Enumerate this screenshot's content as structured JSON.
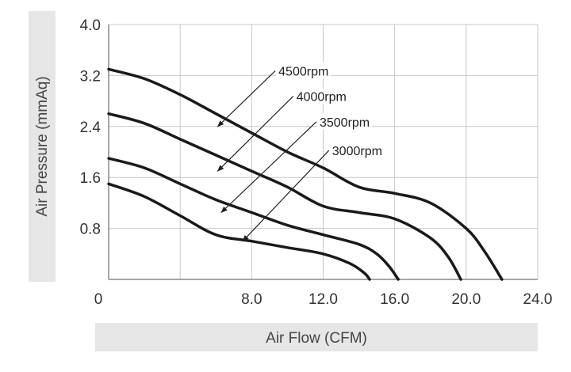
{
  "chart_data": {
    "type": "line",
    "xlabel": "Air Flow (CFM)",
    "ylabel": "Air Pressure (mmAq)",
    "xlim": [
      0,
      24
    ],
    "ylim": [
      0,
      4
    ],
    "x_ticks": [
      {
        "value": 0,
        "label": "0"
      },
      {
        "value": 8,
        "label": "8.0"
      },
      {
        "value": 12,
        "label": "12.0"
      },
      {
        "value": 16,
        "label": "16.0"
      },
      {
        "value": 20,
        "label": "20.0"
      },
      {
        "value": 24,
        "label": "24.0"
      }
    ],
    "y_ticks": [
      {
        "value": 0.8,
        "label": "0.8"
      },
      {
        "value": 1.6,
        "label": "1.6"
      },
      {
        "value": 2.4,
        "label": "2.4"
      },
      {
        "value": 3.2,
        "label": "3.2"
      },
      {
        "value": 4.0,
        "label": "4.0"
      }
    ],
    "x_grid": [
      0,
      4,
      8,
      12,
      16,
      20,
      24
    ],
    "y_grid": [
      0,
      0.8,
      1.6,
      2.4,
      3.2,
      4.0
    ],
    "grid": true,
    "series": [
      {
        "name": "4500rpm",
        "points": [
          [
            0,
            3.3
          ],
          [
            2,
            3.15
          ],
          [
            4,
            2.9
          ],
          [
            6,
            2.6
          ],
          [
            8,
            2.3
          ],
          [
            10,
            2.0
          ],
          [
            12,
            1.75
          ],
          [
            14,
            1.45
          ],
          [
            16,
            1.35
          ],
          [
            18,
            1.2
          ],
          [
            20,
            0.8
          ],
          [
            21,
            0.45
          ],
          [
            22,
            0.0
          ]
        ]
      },
      {
        "name": "4000rpm",
        "points": [
          [
            0,
            2.6
          ],
          [
            2,
            2.45
          ],
          [
            4,
            2.2
          ],
          [
            6,
            1.95
          ],
          [
            8,
            1.7
          ],
          [
            10,
            1.45
          ],
          [
            12,
            1.15
          ],
          [
            14,
            1.05
          ],
          [
            16,
            0.95
          ],
          [
            18,
            0.65
          ],
          [
            19,
            0.35
          ],
          [
            19.7,
            0.0
          ]
        ]
      },
      {
        "name": "3500rpm",
        "points": [
          [
            0,
            1.9
          ],
          [
            2,
            1.75
          ],
          [
            4,
            1.5
          ],
          [
            6,
            1.25
          ],
          [
            8,
            1.05
          ],
          [
            10,
            0.85
          ],
          [
            12,
            0.7
          ],
          [
            14,
            0.55
          ],
          [
            15,
            0.4
          ],
          [
            15.7,
            0.2
          ],
          [
            16.2,
            0.0
          ]
        ]
      },
      {
        "name": "3000rpm",
        "points": [
          [
            0,
            1.5
          ],
          [
            2,
            1.3
          ],
          [
            4,
            1.0
          ],
          [
            6,
            0.7
          ],
          [
            8,
            0.6
          ],
          [
            10,
            0.5
          ],
          [
            12,
            0.4
          ],
          [
            13.5,
            0.25
          ],
          [
            14.3,
            0.1
          ],
          [
            14.6,
            0.0
          ]
        ]
      }
    ],
    "annotations": [
      {
        "text": "4500rpm",
        "text_at": [
          9.5,
          3.2
        ],
        "arrow_to": [
          6.1,
          2.4
        ]
      },
      {
        "text": "4000rpm",
        "text_at": [
          10.5,
          2.8
        ],
        "arrow_to": [
          6.1,
          1.7
        ]
      },
      {
        "text": "3500rpm",
        "text_at": [
          11.8,
          2.4
        ],
        "arrow_to": [
          6.3,
          1.05
        ]
      },
      {
        "text": "3000rpm",
        "text_at": [
          12.5,
          1.95
        ],
        "arrow_to": [
          7.5,
          0.6
        ]
      }
    ]
  }
}
